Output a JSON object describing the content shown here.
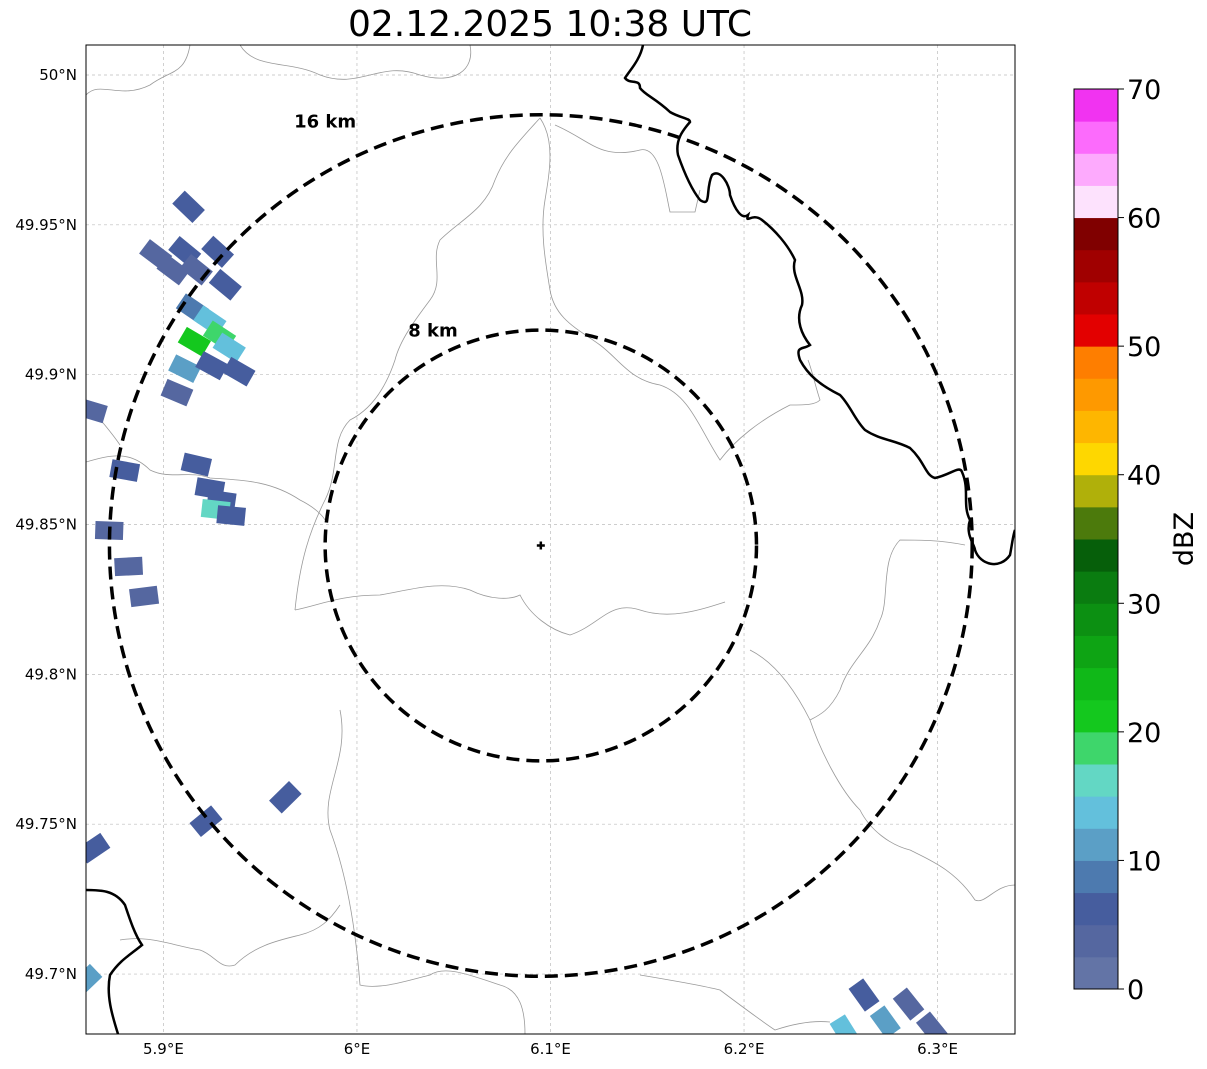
{
  "title": "02.12.2025 10:38 UTC",
  "map": {
    "lon_range": [
      5.86,
      6.34
    ],
    "lat_range": [
      49.68,
      50.01
    ],
    "lon_ticks": [
      5.9,
      6.0,
      6.1,
      6.2,
      6.3
    ],
    "lat_ticks": [
      49.7,
      49.75,
      49.8,
      49.85,
      49.9,
      49.95,
      50.0
    ],
    "lon_tick_labels": [
      "5.9°E",
      "6°E",
      "6.1°E",
      "6.2°E",
      "6.3°E"
    ],
    "lat_tick_labels": [
      "49.7°N",
      "49.75°N",
      "49.8°N",
      "49.85°N",
      "49.9°N",
      "49.95°N",
      "50°N"
    ],
    "gridlines": true
  },
  "radar": {
    "center_lon": 6.095,
    "center_lat": 49.843,
    "rings": [
      {
        "radius_km": 8,
        "label": "8 km"
      },
      {
        "radius_km": 16,
        "label": "16 km"
      }
    ]
  },
  "colorbar": {
    "label": "dBZ",
    "min": 0,
    "max": 70,
    "tick_values": [
      0,
      10,
      20,
      30,
      40,
      50,
      60,
      70
    ],
    "tick_labels": [
      "0",
      "10",
      "20",
      "30",
      "40",
      "50",
      "60",
      "70"
    ],
    "colors": [
      "#6374a6",
      "#5567a0",
      "#465d9e",
      "#4d7aaf",
      "#5b9fc6",
      "#63c0dc",
      "#63d7c4",
      "#3ed66b",
      "#14c81e",
      "#10b818",
      "#0ea414",
      "#0c9012",
      "#0a7c10",
      "#065f0a",
      "#4c7a0c",
      "#b0b00a",
      "#fed700",
      "#feb600",
      "#fe9900",
      "#fe7e00",
      "#e30000",
      "#c00000",
      "#a00000",
      "#800000",
      "#fde2fd",
      "#fdaafd",
      "#fc6bfc",
      "#f133f1"
    ]
  },
  "reflectivity_cells": [
    {
      "lon": 5.911,
      "lat": 49.941,
      "dbz": 5
    },
    {
      "lon": 5.917,
      "lat": 49.935,
      "dbz": 4
    },
    {
      "lon": 5.928,
      "lat": 49.941,
      "dbz": 6
    },
    {
      "lon": 5.932,
      "lat": 49.93,
      "dbz": 5
    },
    {
      "lon": 5.915,
      "lat": 49.922,
      "dbz": 8
    },
    {
      "lon": 5.924,
      "lat": 49.918,
      "dbz": 14
    },
    {
      "lon": 5.929,
      "lat": 49.913,
      "dbz": 18
    },
    {
      "lon": 5.916,
      "lat": 49.911,
      "dbz": 20
    },
    {
      "lon": 5.934,
      "lat": 49.909,
      "dbz": 13
    },
    {
      "lon": 5.911,
      "lat": 49.902,
      "dbz": 11
    },
    {
      "lon": 5.925,
      "lat": 49.903,
      "dbz": 7
    },
    {
      "lon": 5.939,
      "lat": 49.901,
      "dbz": 5
    },
    {
      "lon": 5.907,
      "lat": 49.894,
      "dbz": 4
    },
    {
      "lon": 5.905,
      "lat": 49.935,
      "dbz": 3
    },
    {
      "lon": 5.896,
      "lat": 49.94,
      "dbz": 3
    },
    {
      "lon": 5.913,
      "lat": 49.956,
      "dbz": 6
    },
    {
      "lon": 5.917,
      "lat": 49.87,
      "dbz": 5
    },
    {
      "lon": 5.924,
      "lat": 49.862,
      "dbz": 7
    },
    {
      "lon": 5.93,
      "lat": 49.858,
      "dbz": 6
    },
    {
      "lon": 5.927,
      "lat": 49.855,
      "dbz": 15
    },
    {
      "lon": 5.935,
      "lat": 49.853,
      "dbz": 5
    },
    {
      "lon": 5.88,
      "lat": 49.868,
      "dbz": 5
    },
    {
      "lon": 5.872,
      "lat": 49.848,
      "dbz": 4
    },
    {
      "lon": 5.882,
      "lat": 49.836,
      "dbz": 4
    },
    {
      "lon": 5.89,
      "lat": 49.826,
      "dbz": 4
    },
    {
      "lon": 5.863,
      "lat": 49.888,
      "dbz": 4
    },
    {
      "lon": 5.963,
      "lat": 49.759,
      "dbz": 5
    },
    {
      "lon": 5.922,
      "lat": 49.751,
      "dbz": 5
    },
    {
      "lon": 5.864,
      "lat": 49.742,
      "dbz": 5
    },
    {
      "lon": 5.86,
      "lat": 49.698,
      "dbz": 11
    },
    {
      "lon": 6.262,
      "lat": 49.693,
      "dbz": 5
    },
    {
      "lon": 6.285,
      "lat": 49.69,
      "dbz": 4
    },
    {
      "lon": 6.273,
      "lat": 49.684,
      "dbz": 10
    },
    {
      "lon": 6.297,
      "lat": 49.682,
      "dbz": 3
    },
    {
      "lon": 6.252,
      "lat": 49.681,
      "dbz": 13
    }
  ]
}
